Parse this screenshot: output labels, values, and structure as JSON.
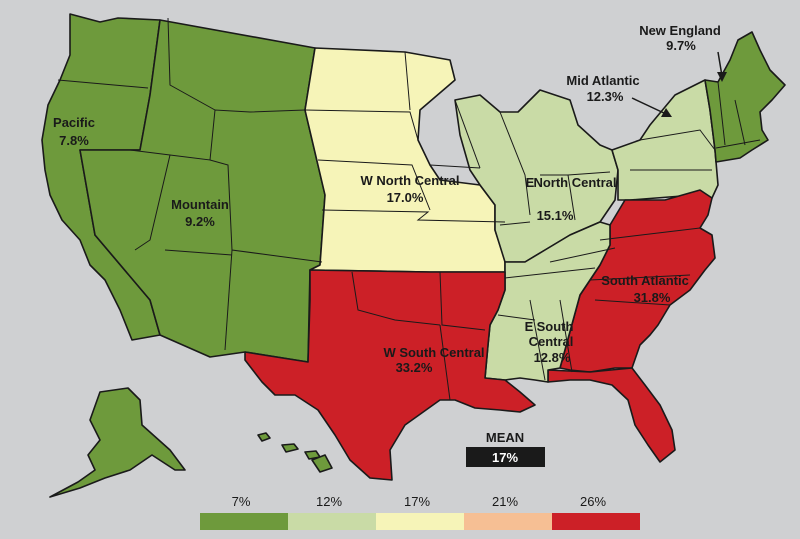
{
  "colors": {
    "background": "#cfd0d2",
    "bin_7": "#6e9a3c",
    "bin_12": "#c9dba6",
    "bin_17": "#f6f4b8",
    "bin_21": "#f6bf94",
    "bin_26": "#cc2027",
    "mean_box": "#1a1a1a"
  },
  "regions": [
    {
      "id": "pacific",
      "name": "Pacific",
      "value": "7.8%",
      "bin": "7%"
    },
    {
      "id": "mountain",
      "name": "Mountain",
      "value": "9.2%",
      "bin": "7%"
    },
    {
      "id": "w-north-central",
      "name": "W North Central",
      "value": "17.0%",
      "bin": "17%"
    },
    {
      "id": "e-north-central",
      "name": "E North Central",
      "value": "15.1%",
      "bin": "12%"
    },
    {
      "id": "mid-atlantic",
      "name": "Mid Atlantic",
      "value": "12.3%",
      "bin": "12%"
    },
    {
      "id": "new-england",
      "name": "New England",
      "value": "9.7%",
      "bin": "7%"
    },
    {
      "id": "south-atlantic",
      "name": "South Atlantic",
      "value": "31.8%",
      "bin": "26%"
    },
    {
      "id": "e-south-central",
      "name": "E South Central",
      "value": "12.8%",
      "bin": "12%"
    },
    {
      "id": "w-south-central",
      "name": "W South Central",
      "value": "33.2%",
      "bin": "26%"
    }
  ],
  "labels": {
    "pacific": {
      "line1": "Pacific",
      "line2": "7.8%"
    },
    "mountain": {
      "line1": "Mountain",
      "line2": "9.2%"
    },
    "wnc": {
      "line1": "W North Central",
      "line2": "17.0%"
    },
    "enc": {
      "line1": "E",
      "line1b": "North Central",
      "line2": "15.1%"
    },
    "mid_atlantic": {
      "line1": "Mid Atlantic",
      "line2": "12.3%"
    },
    "new_england": {
      "line1": "New England",
      "line2": "9.7%"
    },
    "south_atlantic": {
      "line1": "South Atlantic",
      "line2": "31.8%"
    },
    "esc": {
      "line1": "E",
      "line1b": "South",
      "line2": "Central",
      "line3": "12.8%"
    },
    "wsc": {
      "line1": "W South Central",
      "line2": "33.2%"
    }
  },
  "mean": {
    "title": "MEAN",
    "value": "17%"
  },
  "legend": {
    "bins": [
      {
        "label": "7%",
        "color": "#6e9a3c"
      },
      {
        "label": "12%",
        "color": "#c9dba6"
      },
      {
        "label": "17%",
        "color": "#f6f4b8"
      },
      {
        "label": "21%",
        "color": "#f6bf94"
      },
      {
        "label": "26%",
        "color": "#cc2027"
      }
    ]
  }
}
